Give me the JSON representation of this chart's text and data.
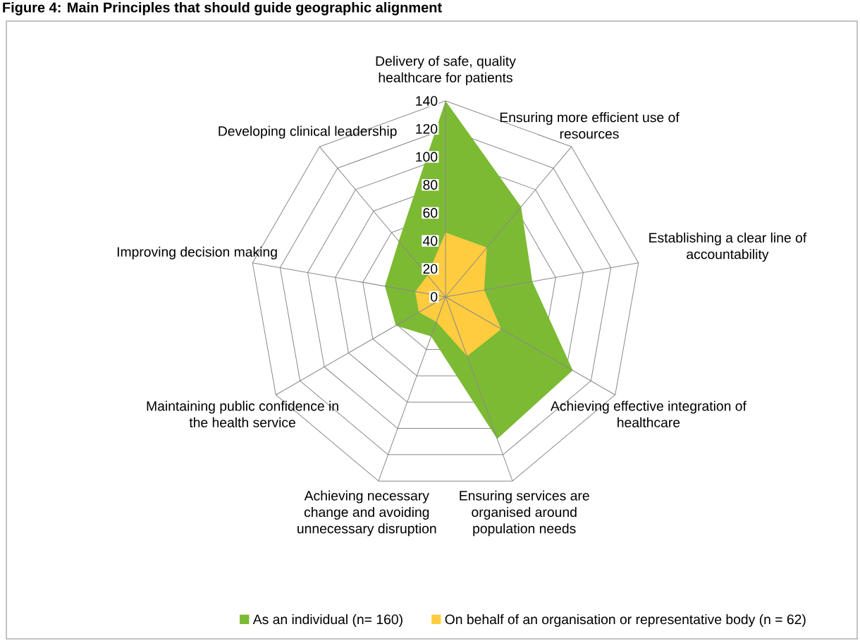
{
  "chart_data": {
    "type": "radar",
    "title": "Figure 4: Main Principles that should guide geographic alignment",
    "categories": [
      "Delivery of safe, quality healthcare for patients",
      "Ensuring more efficient use of resources",
      "Establishing a clear line of accountability",
      "Achieving effective integration of healthcare",
      "Ensuring services are organised around population needs",
      "Achieving necessary change and avoiding unnecessary disruption",
      "Maintaining public confidence in the health service",
      "Improving decision making",
      "Developing clinical leadership"
    ],
    "series": [
      {
        "name": "As an individual (n= 160)",
        "color": "#7cba34",
        "values": [
          140,
          84,
          63,
          105,
          108,
          30,
          41,
          44,
          52
        ]
      },
      {
        "name": "On behalf of an organisation or representative body (n = 62)",
        "color": "#ffcc3f",
        "values": [
          46,
          46,
          28,
          46,
          45,
          19,
          22,
          22,
          20
        ]
      }
    ],
    "ylim": [
      0,
      140
    ],
    "yticks": [
      0,
      20,
      40,
      60,
      80,
      100,
      120,
      140
    ],
    "grid": true,
    "legend": "bottom"
  }
}
